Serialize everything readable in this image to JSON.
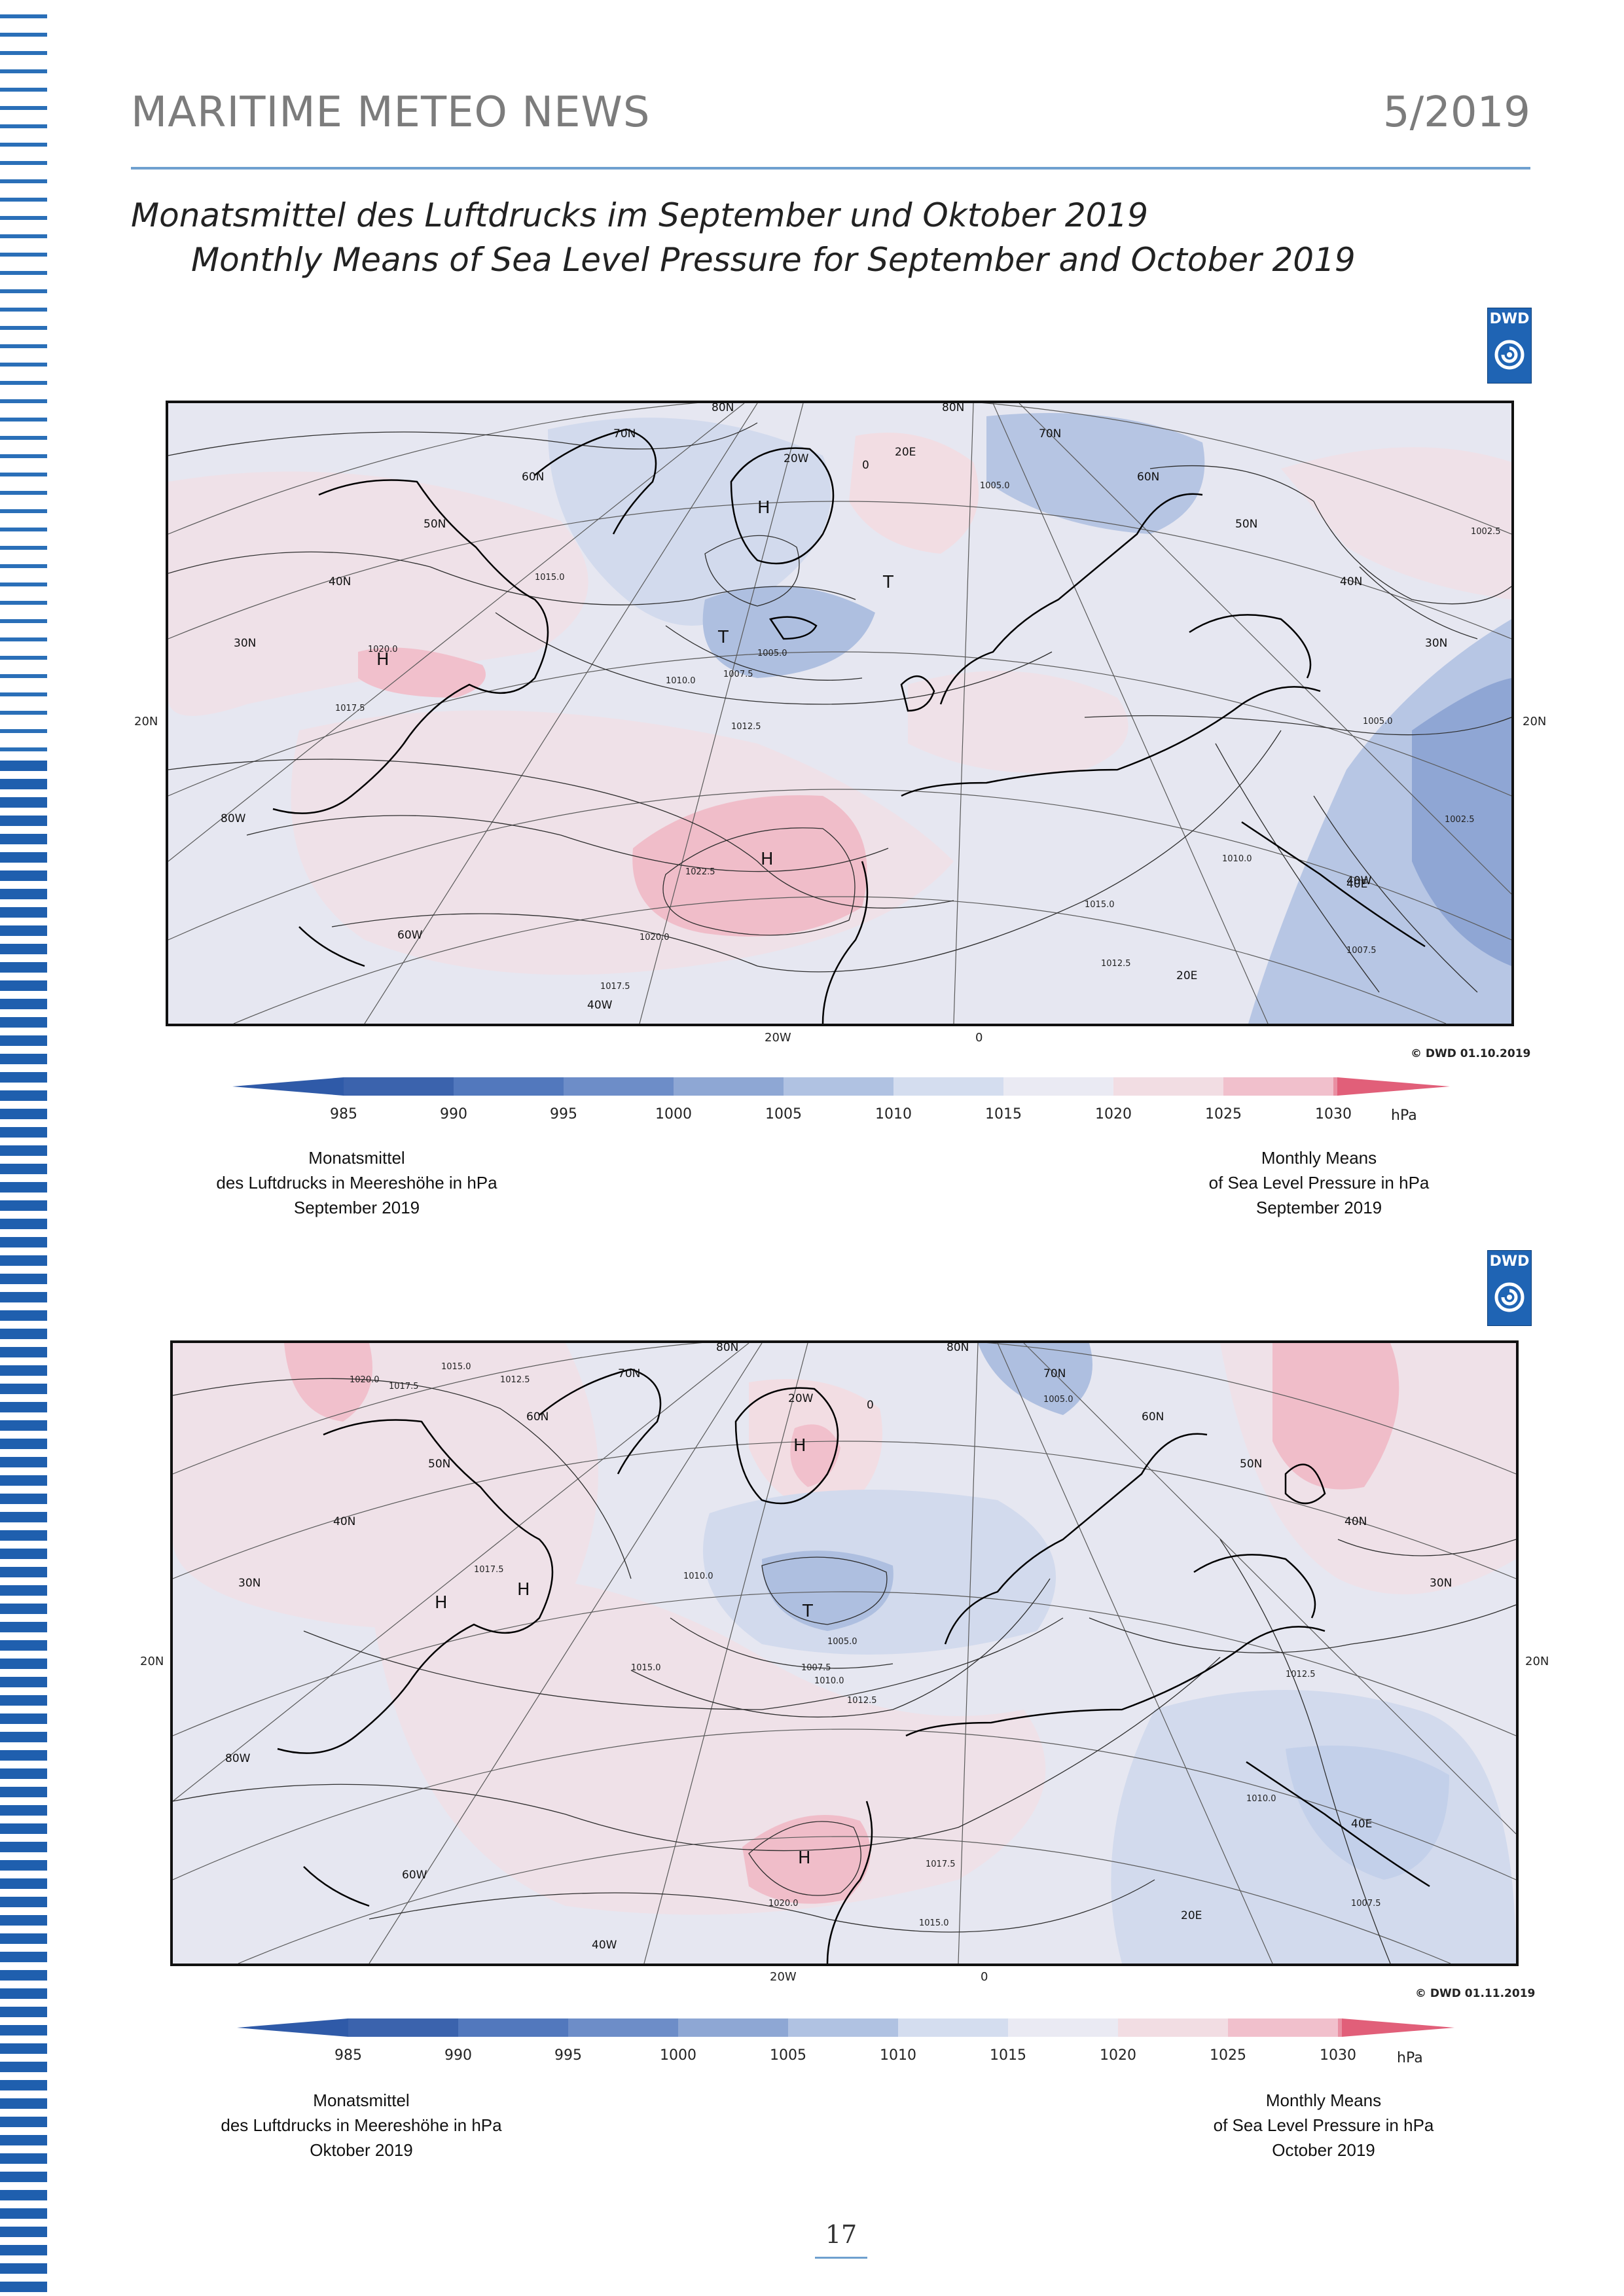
{
  "header": {
    "title": "MARITIME METEO NEWS",
    "issue": "5/2019"
  },
  "headline": {
    "de": "Monatsmittel des Luftdrucks im September und Oktober 2019",
    "en": "Monthly Means of Sea Level Pressure for September and October 2019"
  },
  "logo_text": "DWD",
  "colors": {
    "accent": "#6fa0cf",
    "stripe": "#1f5fae",
    "low_pressure": "#4a74b8",
    "high_pressure": "#e58a9c"
  },
  "colorbar": {
    "ticks": [
      "985",
      "990",
      "995",
      "1000",
      "1005",
      "1010",
      "1015",
      "1020",
      "1025",
      "1030"
    ],
    "unit": "hPa",
    "bins": [
      "#3b63ad",
      "#5278bd",
      "#6d8dc8",
      "#8ea7d4",
      "#b0c2e2",
      "#d4ddef",
      "#eaeaf3",
      "#f2dde3",
      "#f1c0cc",
      "#e98fa2",
      "#e15f79"
    ]
  },
  "maps": [
    {
      "id": "september",
      "copyright": "© DWD 01.10.2019",
      "lat_labels_left": [
        "20N"
      ],
      "lat_labels_right": [
        "20N"
      ],
      "bottom_labels": [
        "20W",
        "0"
      ],
      "grid_labels": [
        "80N",
        "80N",
        "70N",
        "70N",
        "60N",
        "60N",
        "50N",
        "50N",
        "40N",
        "40N",
        "30N",
        "30N",
        "80W",
        "60W",
        "40W",
        "40W",
        "20W",
        "0",
        "20E",
        "20E",
        "40E"
      ],
      "centers": [
        {
          "label": "H",
          "kind": "high"
        },
        {
          "label": "H",
          "kind": "high"
        },
        {
          "label": "H",
          "kind": "high"
        },
        {
          "label": "T",
          "kind": "low"
        },
        {
          "label": "T",
          "kind": "low"
        }
      ],
      "isobar_labels": [
        "1020.0",
        "1017.5",
        "1015.0",
        "1012.5",
        "1010.0",
        "1007.5",
        "1005.0",
        "1002.5",
        "1022.5",
        "1020.0",
        "1017.5",
        "1015.0",
        "1012.5",
        "1010.0",
        "1007.5",
        "1005.0",
        "1002.5",
        "1005.0"
      ],
      "caption_de": [
        "Monatsmittel",
        "des Luftdrucks in Meereshöhe in hPa",
        "September 2019"
      ],
      "caption_en": [
        "Monthly Means",
        "of Sea Level Pressure in hPa",
        "September 2019"
      ]
    },
    {
      "id": "october",
      "copyright": "© DWD 01.11.2019",
      "lat_labels_left": [
        "20N"
      ],
      "lat_labels_right": [
        "20N"
      ],
      "bottom_labels": [
        "20W",
        "0"
      ],
      "grid_labels": [
        "80N",
        "80N",
        "70N",
        "70N",
        "60N",
        "60N",
        "50N",
        "50N",
        "40N",
        "40N",
        "30N",
        "30N",
        "80W",
        "60W",
        "40W",
        "20W",
        "0",
        "20E",
        "40E"
      ],
      "centers": [
        {
          "label": "H",
          "kind": "high"
        },
        {
          "label": "H",
          "kind": "high"
        },
        {
          "label": "H",
          "kind": "high"
        },
        {
          "label": "H",
          "kind": "high"
        },
        {
          "label": "T",
          "kind": "low"
        }
      ],
      "isobar_labels": [
        "1020.0",
        "1017.5",
        "1015.0",
        "1012.5",
        "1010.0",
        "1007.5",
        "1005.0",
        "1017.5",
        "1015.0",
        "1012.5",
        "1010.0",
        "1020.0",
        "1017.5",
        "1015.0",
        "1012.5",
        "1010.0",
        "1007.5",
        "1005.0"
      ],
      "caption_de": [
        "Monatsmittel",
        "des Luftdrucks in Meereshöhe in hPa",
        "Oktober 2019"
      ],
      "caption_en": [
        "Monthly Means",
        "of Sea Level Pressure in hPa",
        "October 2019"
      ]
    }
  ],
  "page_number": "17"
}
